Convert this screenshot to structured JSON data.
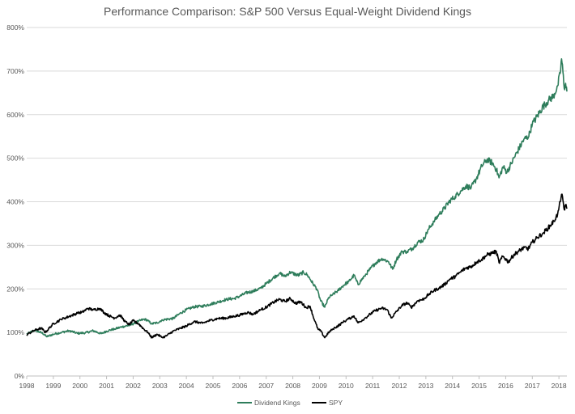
{
  "chart_data": {
    "type": "line",
    "title": "Performance Comparison: S&P 500 Versus Equal-Weight Dividend Kings",
    "xlabel": "",
    "ylabel": "",
    "xlim": [
      1998.0,
      2018.3
    ],
    "ylim": [
      0,
      800
    ],
    "x_ticks": [
      "1998",
      "1999",
      "2000",
      "2001",
      "2002",
      "2003",
      "2004",
      "2005",
      "2006",
      "2007",
      "2008",
      "2009",
      "2010",
      "2011",
      "2012",
      "2013",
      "2014",
      "2015",
      "2016",
      "2017",
      "2018"
    ],
    "y_ticks": [
      "0%",
      "100%",
      "200%",
      "300%",
      "400%",
      "500%",
      "600%",
      "700%",
      "800%"
    ],
    "grid": {
      "horizontal": true,
      "vertical": false
    },
    "legend_position": "bottom",
    "series": [
      {
        "name": "Dividend Kings",
        "color": "#2E7D5B",
        "points": [
          [
            1998.0,
            96
          ],
          [
            1998.3,
            105
          ],
          [
            1998.6,
            98
          ],
          [
            1998.75,
            90
          ],
          [
            1999.0,
            96
          ],
          [
            1999.3,
            100
          ],
          [
            1999.6,
            104
          ],
          [
            1999.9,
            98
          ],
          [
            2000.2,
            99
          ],
          [
            2000.5,
            104
          ],
          [
            2000.8,
            97
          ],
          [
            2001.0,
            103
          ],
          [
            2001.3,
            108
          ],
          [
            2001.6,
            113
          ],
          [
            2001.9,
            117
          ],
          [
            2002.2,
            126
          ],
          [
            2002.45,
            131
          ],
          [
            2002.7,
            120
          ],
          [
            2002.9,
            122
          ],
          [
            2003.1,
            129
          ],
          [
            2003.5,
            132
          ],
          [
            2003.8,
            145
          ],
          [
            2004.0,
            152
          ],
          [
            2004.3,
            159
          ],
          [
            2004.6,
            160
          ],
          [
            2004.9,
            165
          ],
          [
            2005.2,
            170
          ],
          [
            2005.5,
            176
          ],
          [
            2005.8,
            178
          ],
          [
            2006.0,
            183
          ],
          [
            2006.3,
            192
          ],
          [
            2006.5,
            194
          ],
          [
            2006.8,
            202
          ],
          [
            2007.0,
            212
          ],
          [
            2007.3,
            227
          ],
          [
            2007.5,
            236
          ],
          [
            2007.7,
            229
          ],
          [
            2007.9,
            238
          ],
          [
            2008.2,
            231
          ],
          [
            2008.4,
            238
          ],
          [
            2008.55,
            232
          ],
          [
            2008.75,
            213
          ],
          [
            2008.9,
            200
          ],
          [
            2009.05,
            172
          ],
          [
            2009.2,
            158
          ],
          [
            2009.35,
            180
          ],
          [
            2009.5,
            187
          ],
          [
            2009.7,
            196
          ],
          [
            2009.9,
            208
          ],
          [
            2010.1,
            217
          ],
          [
            2010.3,
            231
          ],
          [
            2010.45,
            210
          ],
          [
            2010.7,
            230
          ],
          [
            2010.9,
            245
          ],
          [
            2011.1,
            259
          ],
          [
            2011.35,
            270
          ],
          [
            2011.6,
            262
          ],
          [
            2011.75,
            245
          ],
          [
            2011.9,
            268
          ],
          [
            2012.1,
            285
          ],
          [
            2012.3,
            286
          ],
          [
            2012.5,
            293
          ],
          [
            2012.7,
            307
          ],
          [
            2012.9,
            312
          ],
          [
            2013.1,
            337
          ],
          [
            2013.3,
            355
          ],
          [
            2013.5,
            371
          ],
          [
            2013.7,
            385
          ],
          [
            2013.9,
            402
          ],
          [
            2014.1,
            412
          ],
          [
            2014.3,
            424
          ],
          [
            2014.5,
            436
          ],
          [
            2014.7,
            432
          ],
          [
            2014.9,
            453
          ],
          [
            2015.1,
            482
          ],
          [
            2015.3,
            497
          ],
          [
            2015.5,
            489
          ],
          [
            2015.65,
            474
          ],
          [
            2015.75,
            455
          ],
          [
            2015.9,
            480
          ],
          [
            2016.05,
            468
          ],
          [
            2016.2,
            487
          ],
          [
            2016.5,
            522
          ],
          [
            2016.7,
            545
          ],
          [
            2016.85,
            548
          ],
          [
            2017.0,
            578
          ],
          [
            2017.2,
            598
          ],
          [
            2017.4,
            618
          ],
          [
            2017.6,
            632
          ],
          [
            2017.8,
            643
          ],
          [
            2017.95,
            666
          ],
          [
            2018.05,
            695
          ],
          [
            2018.1,
            728
          ],
          [
            2018.15,
            698
          ],
          [
            2018.2,
            660
          ],
          [
            2018.25,
            672
          ],
          [
            2018.3,
            653
          ]
        ]
      },
      {
        "name": "SPY",
        "color": "#000000",
        "points": [
          [
            1998.0,
            95
          ],
          [
            1998.3,
            105
          ],
          [
            1998.55,
            110
          ],
          [
            1998.7,
            100
          ],
          [
            1998.85,
            110
          ],
          [
            1999.0,
            120
          ],
          [
            1999.3,
            130
          ],
          [
            1999.6,
            137
          ],
          [
            1999.9,
            144
          ],
          [
            2000.1,
            147
          ],
          [
            2000.3,
            155
          ],
          [
            2000.5,
            152
          ],
          [
            2000.75,
            155
          ],
          [
            2000.9,
            146
          ],
          [
            2001.1,
            138
          ],
          [
            2001.3,
            133
          ],
          [
            2001.5,
            140
          ],
          [
            2001.7,
            125
          ],
          [
            2001.85,
            118
          ],
          [
            2002.0,
            127
          ],
          [
            2002.2,
            120
          ],
          [
            2002.4,
            108
          ],
          [
            2002.55,
            100
          ],
          [
            2002.7,
            88
          ],
          [
            2002.9,
            96
          ],
          [
            2003.1,
            88
          ],
          [
            2003.25,
            92
          ],
          [
            2003.5,
            103
          ],
          [
            2003.8,
            110
          ],
          [
            2004.0,
            115
          ],
          [
            2004.3,
            125
          ],
          [
            2004.6,
            121
          ],
          [
            2004.9,
            128
          ],
          [
            2005.2,
            132
          ],
          [
            2005.5,
            133
          ],
          [
            2005.8,
            137
          ],
          [
            2006.0,
            140
          ],
          [
            2006.3,
            146
          ],
          [
            2006.5,
            142
          ],
          [
            2006.8,
            152
          ],
          [
            2007.0,
            158
          ],
          [
            2007.3,
            170
          ],
          [
            2007.5,
            176
          ],
          [
            2007.7,
            171
          ],
          [
            2007.9,
            178
          ],
          [
            2008.1,
            167
          ],
          [
            2008.3,
            170
          ],
          [
            2008.5,
            157
          ],
          [
            2008.65,
            160
          ],
          [
            2008.8,
            130
          ],
          [
            2008.95,
            107
          ],
          [
            2009.05,
            103
          ],
          [
            2009.2,
            88
          ],
          [
            2009.35,
            100
          ],
          [
            2009.5,
            108
          ],
          [
            2009.7,
            115
          ],
          [
            2009.9,
            124
          ],
          [
            2010.1,
            131
          ],
          [
            2010.3,
            138
          ],
          [
            2010.45,
            122
          ],
          [
            2010.7,
            132
          ],
          [
            2010.9,
            142
          ],
          [
            2011.1,
            150
          ],
          [
            2011.35,
            156
          ],
          [
            2011.55,
            152
          ],
          [
            2011.7,
            133
          ],
          [
            2011.9,
            148
          ],
          [
            2012.1,
            162
          ],
          [
            2012.3,
            168
          ],
          [
            2012.45,
            157
          ],
          [
            2012.7,
            173
          ],
          [
            2012.9,
            176
          ],
          [
            2013.1,
            187
          ],
          [
            2013.3,
            196
          ],
          [
            2013.5,
            202
          ],
          [
            2013.7,
            210
          ],
          [
            2013.9,
            222
          ],
          [
            2014.1,
            228
          ],
          [
            2014.3,
            239
          ],
          [
            2014.5,
            248
          ],
          [
            2014.7,
            251
          ],
          [
            2014.9,
            261
          ],
          [
            2015.1,
            268
          ],
          [
            2015.3,
            278
          ],
          [
            2015.5,
            282
          ],
          [
            2015.65,
            286
          ],
          [
            2015.75,
            260
          ],
          [
            2015.9,
            275
          ],
          [
            2016.1,
            262
          ],
          [
            2016.3,
            278
          ],
          [
            2016.5,
            287
          ],
          [
            2016.7,
            295
          ],
          [
            2016.85,
            292
          ],
          [
            2017.0,
            307
          ],
          [
            2017.2,
            318
          ],
          [
            2017.4,
            328
          ],
          [
            2017.6,
            340
          ],
          [
            2017.8,
            355
          ],
          [
            2017.95,
            371
          ],
          [
            2018.05,
            400
          ],
          [
            2018.1,
            417
          ],
          [
            2018.15,
            403
          ],
          [
            2018.2,
            382
          ],
          [
            2018.25,
            393
          ],
          [
            2018.3,
            384
          ]
        ]
      }
    ]
  }
}
